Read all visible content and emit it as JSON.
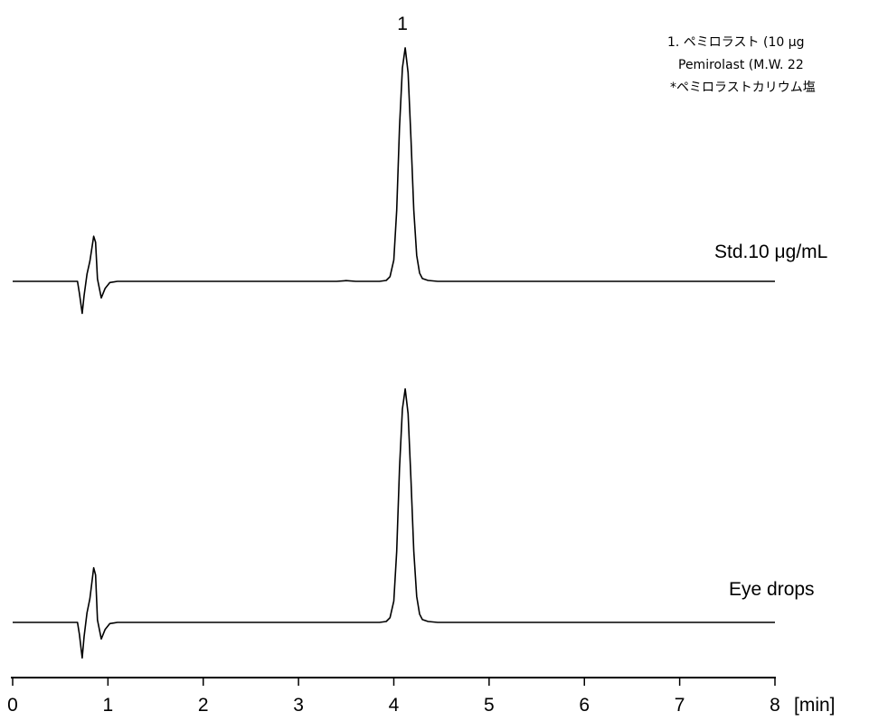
{
  "chart_data": {
    "type": "line",
    "x_unit_label": "[min]",
    "xlim": [
      0,
      8
    ],
    "x_ticks": [
      0,
      1,
      2,
      3,
      4,
      5,
      6,
      7,
      8
    ],
    "grid": false,
    "peak_labels": [
      {
        "label": "1",
        "x": 4.1
      }
    ],
    "legend_lines": [
      "1. ペミロラスト (10 μg",
      "Pemirolast (M.W. 22",
      "*ペミロラストカリウム塩"
    ],
    "legend_position": "top-right",
    "series": [
      {
        "name": "Std.10 μg/mL",
        "points": [
          [
            0.0,
            0.0
          ],
          [
            0.68,
            0.0
          ],
          [
            0.7,
            -0.05
          ],
          [
            0.73,
            -0.135
          ],
          [
            0.75,
            -0.06
          ],
          [
            0.78,
            0.03
          ],
          [
            0.81,
            0.085
          ],
          [
            0.85,
            0.19
          ],
          [
            0.87,
            0.165
          ],
          [
            0.89,
            0.01
          ],
          [
            0.93,
            -0.07
          ],
          [
            0.97,
            -0.03
          ],
          [
            1.02,
            -0.005
          ],
          [
            1.1,
            0.0
          ],
          [
            3.4,
            0.0
          ],
          [
            3.5,
            0.003
          ],
          [
            3.6,
            0.0
          ],
          [
            3.85,
            0.0
          ],
          [
            3.92,
            0.004
          ],
          [
            3.96,
            0.02
          ],
          [
            4.0,
            0.09
          ],
          [
            4.03,
            0.3
          ],
          [
            4.06,
            0.65
          ],
          [
            4.09,
            0.9
          ],
          [
            4.12,
            0.985
          ],
          [
            4.15,
            0.88
          ],
          [
            4.18,
            0.6
          ],
          [
            4.21,
            0.3
          ],
          [
            4.24,
            0.11
          ],
          [
            4.27,
            0.035
          ],
          [
            4.3,
            0.012
          ],
          [
            4.36,
            0.004
          ],
          [
            4.46,
            0.0
          ],
          [
            8.0,
            0.0
          ]
        ]
      },
      {
        "name": "Eye drops",
        "points": [
          [
            0.0,
            0.0
          ],
          [
            0.68,
            0.0
          ],
          [
            0.7,
            -0.05
          ],
          [
            0.73,
            -0.15
          ],
          [
            0.75,
            -0.06
          ],
          [
            0.78,
            0.04
          ],
          [
            0.81,
            0.1
          ],
          [
            0.85,
            0.23
          ],
          [
            0.87,
            0.2
          ],
          [
            0.89,
            0.01
          ],
          [
            0.93,
            -0.07
          ],
          [
            0.97,
            -0.03
          ],
          [
            1.02,
            -0.005
          ],
          [
            1.1,
            0.0
          ],
          [
            3.85,
            0.0
          ],
          [
            3.92,
            0.004
          ],
          [
            3.96,
            0.02
          ],
          [
            4.0,
            0.09
          ],
          [
            4.03,
            0.3
          ],
          [
            4.06,
            0.65
          ],
          [
            4.09,
            0.9
          ],
          [
            4.12,
            0.985
          ],
          [
            4.15,
            0.88
          ],
          [
            4.18,
            0.6
          ],
          [
            4.21,
            0.3
          ],
          [
            4.24,
            0.11
          ],
          [
            4.27,
            0.035
          ],
          [
            4.3,
            0.012
          ],
          [
            4.36,
            0.004
          ],
          [
            4.46,
            0.0
          ],
          [
            4.9,
            0.0
          ],
          [
            8.0,
            0.0
          ]
        ]
      }
    ]
  }
}
